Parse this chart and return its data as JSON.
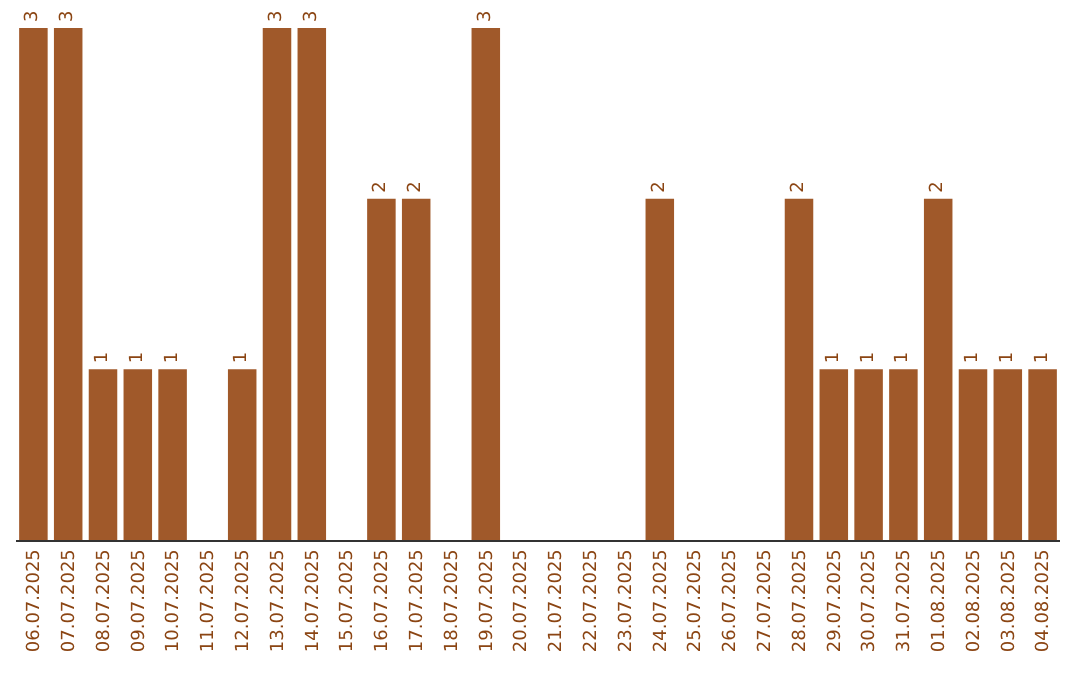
{
  "chart_data": {
    "type": "bar",
    "categories": [
      "06.07.2025",
      "07.07.2025",
      "08.07.2025",
      "09.07.2025",
      "10.07.2025",
      "11.07.2025",
      "12.07.2025",
      "13.07.2025",
      "14.07.2025",
      "15.07.2025",
      "16.07.2025",
      "17.07.2025",
      "18.07.2025",
      "19.07.2025",
      "20.07.2025",
      "21.07.2025",
      "22.07.2025",
      "23.07.2025",
      "24.07.2025",
      "25.07.2025",
      "26.07.2025",
      "27.07.2025",
      "28.07.2025",
      "29.07.2025",
      "30.07.2025",
      "31.07.2025",
      "01.08.2025",
      "02.08.2025",
      "03.08.2025",
      "04.08.2025"
    ],
    "values": [
      3,
      3,
      1,
      1,
      1,
      0,
      1,
      3,
      3,
      0,
      2,
      2,
      0,
      3,
      0,
      0,
      0,
      0,
      2,
      0,
      0,
      0,
      2,
      1,
      1,
      1,
      2,
      1,
      1,
      1
    ],
    "value_labels": [
      "3",
      "3",
      "1",
      "1",
      "1",
      null,
      "1",
      "3",
      "3",
      null,
      "2",
      "2",
      null,
      "3",
      null,
      null,
      null,
      null,
      "2",
      null,
      null,
      null,
      "2",
      "1",
      "1",
      "1",
      "2",
      "1",
      "1",
      "1"
    ],
    "color": "#a0592a"
  }
}
